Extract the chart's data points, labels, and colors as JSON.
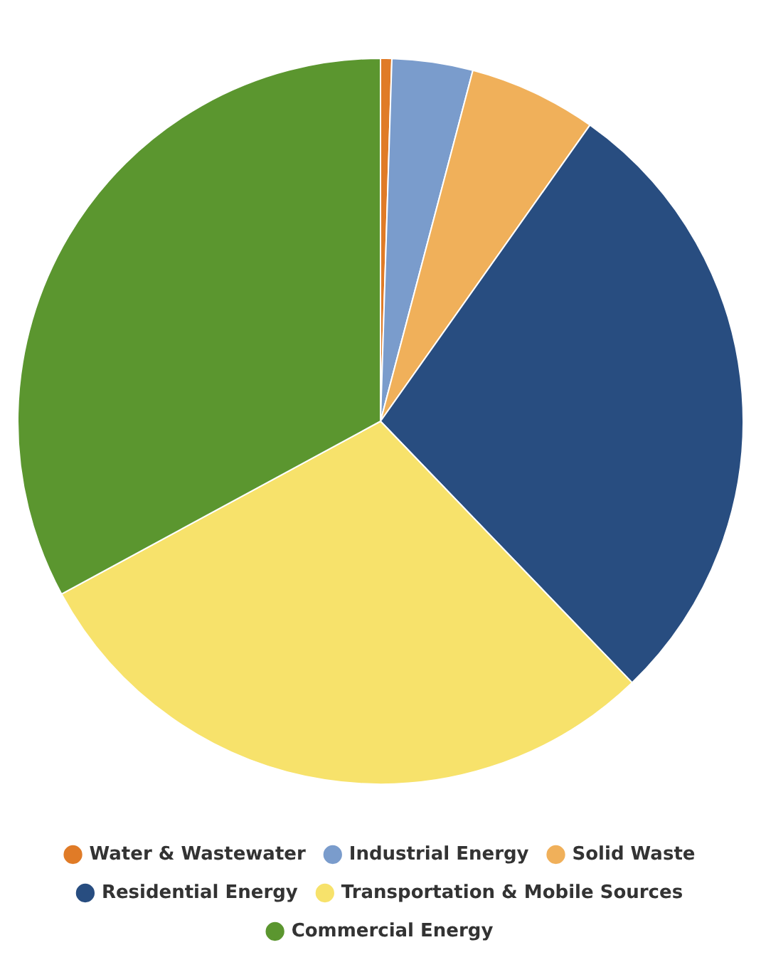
{
  "chart_data": {
    "type": "pie",
    "categories": [
      "Water & Wastewater",
      "Industrial Energy",
      "Solid Waste",
      "Residential Energy",
      "Transportation & Mobile Sources",
      "Commercial Energy"
    ],
    "values": [
      0.5,
      3.6,
      5.7,
      28.0,
      29.3,
      32.9
    ],
    "colors": [
      "#e07b27",
      "#7a9ccc",
      "#f0b05a",
      "#284d80",
      "#f7e26b",
      "#5b962f"
    ],
    "legend": "bottom"
  }
}
